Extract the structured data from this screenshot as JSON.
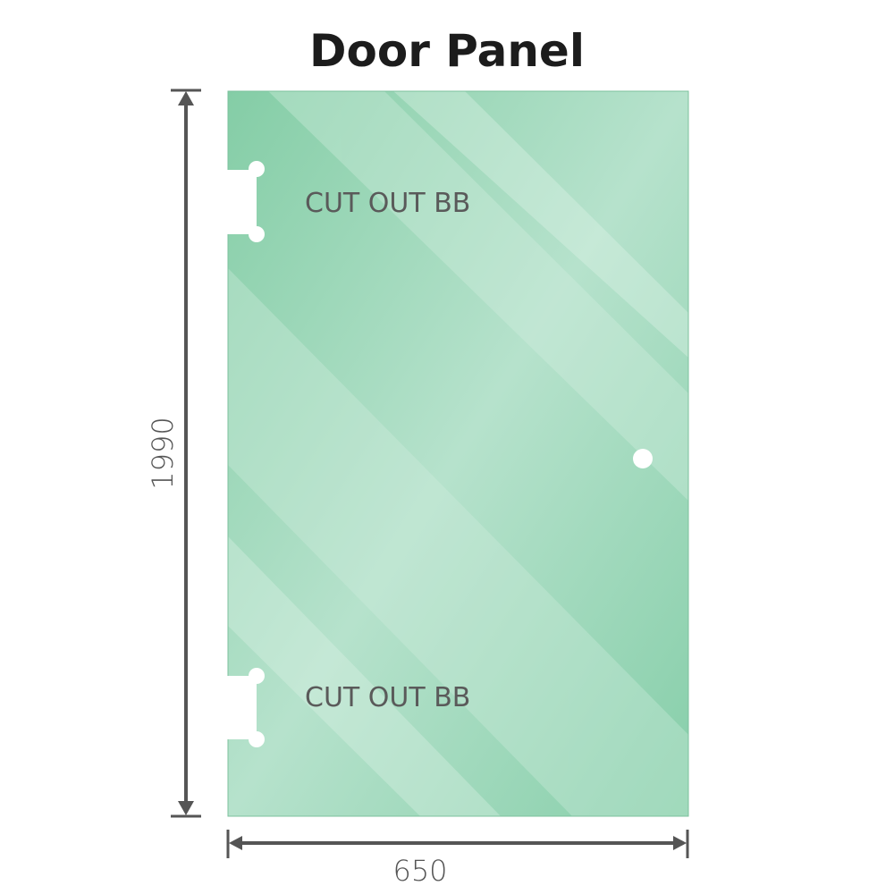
{
  "title": "Door Panel",
  "panel": {
    "color": "#86cfaa",
    "cutouts": [
      {
        "label": "CUT OUT BB"
      },
      {
        "label": "CUT OUT BB"
      }
    ]
  },
  "dimensions": {
    "height": "1990",
    "width": "650",
    "color": "#555555"
  }
}
